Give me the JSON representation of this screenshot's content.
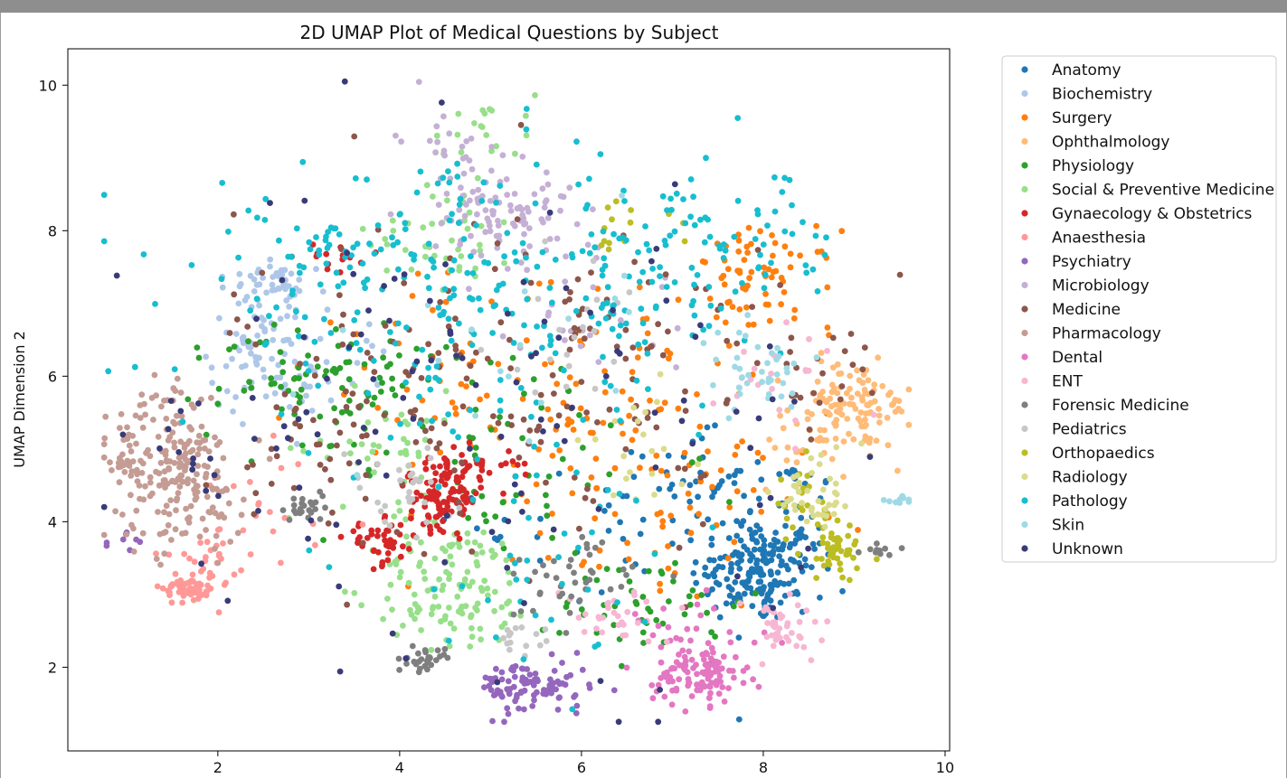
{
  "chart_data": {
    "type": "scatter",
    "title": "2D UMAP Plot of Medical Questions by Subject",
    "xlabel": "",
    "ylabel": "UMAP Dimension 2",
    "xlim": [
      0.35,
      10.05
    ],
    "ylim": [
      0.85,
      10.5
    ],
    "xticks": [
      2,
      4,
      6,
      8,
      10
    ],
    "yticks": [
      2,
      4,
      6,
      8,
      10
    ],
    "legend_position": "outside-right",
    "grid": false,
    "series": [
      {
        "name": "Anatomy",
        "color": "#1f77b4",
        "clusters": [
          [
            7.9,
            3.3,
            0.35,
            0.35,
            140
          ],
          [
            8.2,
            3.8,
            0.3,
            0.6,
            80
          ],
          [
            7.2,
            4.6,
            0.3,
            0.3,
            30
          ],
          [
            6.5,
            4.0,
            0.8,
            0.7,
            40
          ]
        ]
      },
      {
        "name": "Biochemistry",
        "color": "#aec7e8",
        "clusters": [
          [
            2.5,
            6.5,
            0.3,
            0.5,
            90
          ],
          [
            2.6,
            7.3,
            0.2,
            0.12,
            30
          ],
          [
            3.2,
            6.0,
            0.4,
            0.4,
            20
          ]
        ]
      },
      {
        "name": "Surgery",
        "color": "#ff7f0e",
        "clusters": [
          [
            8.0,
            7.3,
            0.4,
            0.35,
            70
          ],
          [
            6.0,
            5.6,
            0.9,
            0.8,
            100
          ],
          [
            4.5,
            6.2,
            0.8,
            0.8,
            30
          ],
          [
            7.0,
            4.0,
            0.7,
            0.6,
            50
          ]
        ]
      },
      {
        "name": "Ophthalmology",
        "color": "#ffbb78",
        "clusters": [
          [
            9.0,
            5.6,
            0.35,
            0.3,
            100
          ],
          [
            8.5,
            5.1,
            0.3,
            0.3,
            30
          ]
        ]
      },
      {
        "name": "Physiology",
        "color": "#2ca02c",
        "clusters": [
          [
            3.3,
            6.0,
            0.6,
            0.4,
            60
          ],
          [
            6.8,
            2.9,
            0.5,
            0.4,
            50
          ],
          [
            5.0,
            5.0,
            1.0,
            0.8,
            60
          ],
          [
            2.5,
            5.8,
            0.3,
            0.4,
            20
          ]
        ]
      },
      {
        "name": "Social & Preventive Medicine",
        "color": "#98df8a",
        "clusters": [
          [
            4.6,
            3.1,
            0.45,
            0.45,
            130
          ],
          [
            4.5,
            8.0,
            0.4,
            0.4,
            40
          ],
          [
            3.8,
            5.0,
            0.5,
            0.4,
            40
          ],
          [
            4.9,
            9.4,
            0.3,
            0.3,
            20
          ]
        ]
      },
      {
        "name": "Gynaecology & Obstetrics",
        "color": "#d62728",
        "clusters": [
          [
            4.5,
            4.3,
            0.2,
            0.2,
            100
          ],
          [
            4.7,
            4.8,
            0.3,
            0.12,
            40
          ],
          [
            3.8,
            3.7,
            0.2,
            0.15,
            40
          ],
          [
            3.2,
            7.6,
            0.3,
            0.15,
            15
          ]
        ]
      },
      {
        "name": "Anaesthesia",
        "color": "#ff9896",
        "clusters": [
          [
            1.7,
            3.1,
            0.15,
            0.12,
            60
          ],
          [
            1.9,
            3.5,
            0.2,
            0.15,
            20
          ],
          [
            2.8,
            4.3,
            0.5,
            0.4,
            20
          ]
        ]
      },
      {
        "name": "Psychiatry",
        "color": "#9467bd",
        "clusters": [
          [
            5.5,
            1.7,
            0.3,
            0.2,
            80
          ],
          [
            5.1,
            1.8,
            0.15,
            0.1,
            15
          ],
          [
            1.0,
            3.7,
            0.12,
            0.1,
            8
          ]
        ]
      },
      {
        "name": "Microbiology",
        "color": "#c5b0d5",
        "clusters": [
          [
            5.1,
            8.3,
            0.4,
            0.3,
            90
          ],
          [
            4.5,
            9.3,
            0.25,
            0.3,
            20
          ],
          [
            6.0,
            7.0,
            0.6,
            0.6,
            30
          ]
        ]
      },
      {
        "name": "Medicine",
        "color": "#8c564b",
        "clusters": [
          [
            5.2,
            6.0,
            1.5,
            1.2,
            180
          ],
          [
            3.5,
            5.0,
            0.7,
            0.6,
            30
          ],
          [
            8.5,
            6.0,
            0.3,
            0.3,
            20
          ]
        ]
      },
      {
        "name": "Pharmacology",
        "color": "#c49c94",
        "clusters": [
          [
            1.6,
            4.6,
            0.35,
            0.45,
            180
          ],
          [
            1.0,
            5.0,
            0.15,
            0.3,
            30
          ],
          [
            1.5,
            5.7,
            0.2,
            0.2,
            20
          ]
        ]
      },
      {
        "name": "Dental",
        "color": "#e377c2",
        "clusters": [
          [
            7.3,
            1.9,
            0.25,
            0.2,
            110
          ],
          [
            7.1,
            2.5,
            0.4,
            0.2,
            20
          ]
        ]
      },
      {
        "name": "ENT",
        "color": "#f7b6d2",
        "clusters": [
          [
            8.2,
            2.5,
            0.3,
            0.25,
            40
          ],
          [
            6.4,
            2.7,
            0.3,
            0.2,
            30
          ],
          [
            8.2,
            6.0,
            0.4,
            0.4,
            20
          ]
        ]
      },
      {
        "name": "Forensic Medicine",
        "color": "#7f7f7f",
        "clusters": [
          [
            4.3,
            2.1,
            0.1,
            0.08,
            30
          ],
          [
            5.8,
            3.2,
            0.4,
            0.3,
            40
          ],
          [
            3.0,
            4.2,
            0.2,
            0.1,
            25
          ],
          [
            9.3,
            3.6,
            0.1,
            0.05,
            10
          ]
        ]
      },
      {
        "name": "Pediatrics",
        "color": "#c7c7c7",
        "clusters": [
          [
            4.0,
            4.4,
            0.3,
            0.3,
            30
          ],
          [
            5.3,
            2.4,
            0.15,
            0.1,
            15
          ],
          [
            6.0,
            6.8,
            0.5,
            0.5,
            20
          ]
        ]
      },
      {
        "name": "Orthopaedics",
        "color": "#bcbd22",
        "clusters": [
          [
            8.8,
            3.6,
            0.2,
            0.2,
            50
          ],
          [
            8.4,
            4.2,
            0.25,
            0.3,
            20
          ],
          [
            6.4,
            8.0,
            0.3,
            0.2,
            15
          ]
        ]
      },
      {
        "name": "Radiology",
        "color": "#dbdb8d",
        "clusters": [
          [
            8.6,
            4.4,
            0.25,
            0.3,
            40
          ],
          [
            6.8,
            5.0,
            0.4,
            0.4,
            20
          ]
        ]
      },
      {
        "name": "Pathology",
        "color": "#17becf",
        "clusters": [
          [
            4.8,
            7.0,
            1.6,
            0.9,
            260
          ],
          [
            7.5,
            7.8,
            0.8,
            0.5,
            70
          ],
          [
            3.3,
            7.8,
            0.4,
            0.15,
            30
          ],
          [
            5.5,
            3.5,
            1.0,
            0.8,
            40
          ]
        ]
      },
      {
        "name": "Skin",
        "color": "#9edae5",
        "clusters": [
          [
            7.9,
            6.0,
            0.3,
            0.3,
            40
          ],
          [
            9.5,
            4.3,
            0.1,
            0.05,
            10
          ],
          [
            5.5,
            6.5,
            0.8,
            0.8,
            20
          ]
        ]
      },
      {
        "name": "Unknown",
        "color": "#393b79",
        "clusters": [
          [
            5.0,
            5.5,
            1.8,
            1.6,
            110
          ],
          [
            2.0,
            5.0,
            0.5,
            0.5,
            20
          ]
        ]
      }
    ]
  }
}
